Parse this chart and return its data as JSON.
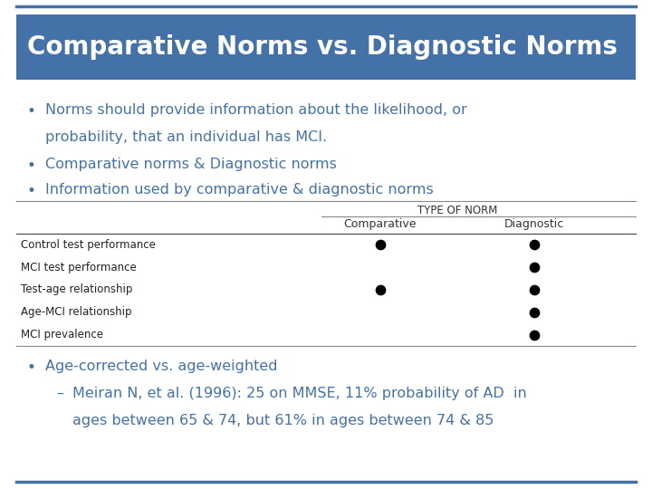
{
  "title": "Comparative Norms vs. Diagnostic Norms",
  "title_bg_color": "#4472A8",
  "title_text_color": "#FFFFFF",
  "slide_bg_color": "#FFFFFF",
  "border_color": "#4472A8",
  "bullet_color": "#4472A8",
  "bullets": [
    "Norms should provide information about the likelihood, or\n   probability, that an individual has MCI.",
    "Comparative norms & Diagnostic norms",
    "Information used by comparative & diagnostic norms"
  ],
  "table_header_top": "TYPE OF NORM",
  "table_col_headers": [
    "Comparative",
    "Diagnostic"
  ],
  "table_rows": [
    "Control test performance",
    "MCI test performance",
    "Test-age relationship",
    "Age-MCI relationship",
    "MCI prevalence"
  ],
  "dots_comparative": [
    0,
    2
  ],
  "dots_diagnostic": [
    0,
    1,
    2,
    3,
    4
  ],
  "bottom_bullet": "Age-corrected vs. age-weighted",
  "bottom_subbullet_line1": "Meiran N, et al. (1996): 25 on MMSE, 11% probability of AD  in",
  "bottom_subbullet_line2": "ages between 65 & 74, but 61% in ages between 74 & 85"
}
